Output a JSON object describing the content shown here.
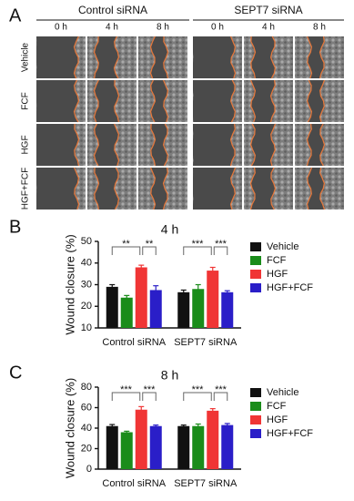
{
  "panel_a": {
    "label": "A",
    "groups": [
      "Control siRNA",
      "SEPT7 siRNA"
    ],
    "times": [
      "0 h",
      "4 h",
      "8 h"
    ],
    "rows": [
      "Vehicle",
      "FCF",
      "HGF",
      "HGF+FCF"
    ]
  },
  "chart_data": [
    {
      "type": "bar",
      "panel_label": "B",
      "title": "4 h",
      "y_label": "Wound closure (%)",
      "categories": [
        "Control siRNA",
        "SEPT7 siRNA"
      ],
      "series": [
        {
          "name": "Vehicle",
          "color": "#111111",
          "values": [
            29,
            26.5
          ],
          "errors": [
            1,
            1
          ]
        },
        {
          "name": "FCF",
          "color": "#1a8c1a",
          "values": [
            24,
            28
          ],
          "errors": [
            1,
            2
          ]
        },
        {
          "name": "HGF",
          "color": "#f03535",
          "values": [
            38,
            36.5
          ],
          "errors": [
            1,
            1.5
          ]
        },
        {
          "name": "HGF+FCF",
          "color": "#2a1ec8",
          "values": [
            27.5,
            26.5
          ],
          "errors": [
            2,
            0.7
          ]
        }
      ],
      "ylim": [
        10,
        50
      ],
      "yticks": [
        10,
        20,
        30,
        40,
        50
      ],
      "annotations": [
        "**",
        "**",
        "***",
        "***"
      ]
    },
    {
      "type": "bar",
      "panel_label": "C",
      "title": "8 h",
      "y_label": "Wound closure (%)",
      "categories": [
        "Control siRNA",
        "SEPT7 siRNA"
      ],
      "series": [
        {
          "name": "Vehicle",
          "color": "#111111",
          "values": [
            42,
            42
          ],
          "errors": [
            1.5,
            1
          ]
        },
        {
          "name": "FCF",
          "color": "#1a8c1a",
          "values": [
            36,
            42
          ],
          "errors": [
            1,
            2
          ]
        },
        {
          "name": "HGF",
          "color": "#f03535",
          "values": [
            58,
            57
          ],
          "errors": [
            3,
            2
          ]
        },
        {
          "name": "HGF+FCF",
          "color": "#2a1ec8",
          "values": [
            42,
            43
          ],
          "errors": [
            1,
            1.5
          ]
        }
      ],
      "ylim": [
        0,
        80
      ],
      "yticks": [
        0,
        20,
        40,
        60,
        80
      ],
      "annotations": [
        "***",
        "***",
        "***",
        "***"
      ]
    }
  ]
}
